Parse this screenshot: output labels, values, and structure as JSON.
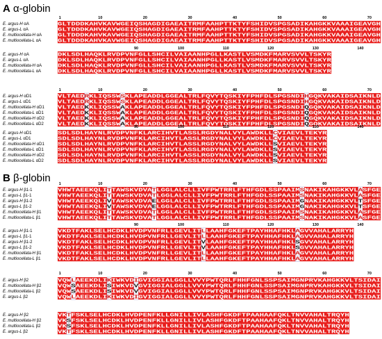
{
  "panels": [
    {
      "label": "A",
      "title": "α-globin",
      "blocks": [
        {
          "ruler": [
            1,
            10,
            20,
            30,
            40,
            50,
            60,
            70
          ],
          "rows": [
            {
              "name": "E. argus-H αA",
              "seq": "GLTDDDKAHVKAVWGEIQSHAGDIGAEAITRMFAAHPTTKTYFSHIDVSPGSADIKAHGKKVAAAIGEAVGH"
            },
            {
              "name": "E. argus-L αA",
              "seq": "GLTDDDKAHVKAVWGEIQSHAGDIGAEAITRMFAAHPTTKTYFSHIDVSPGSADIKAHGKKVAAAIGEAVGH"
            },
            {
              "name": "E. multiocellata-H αA",
              "seq": "GLTDDDKAHVKAVWGEIQSHAGDIGAEAITRMFAAHPTTKTYFSHIDVSPGSADIKAHGKKVAAAIGEAVGH"
            },
            {
              "name": "E. multiocellata-L αA",
              "seq": "GLTDDDKAHVKAVWGEIQSHAGDIGAEAITRMFAAHPTTKTYFSHIDVSPGSADIKAHGKKVAAAIGEAVGH"
            }
          ]
        },
        {
          "ruler": [
            90,
            100,
            110,
            120,
            130,
            140
          ],
          "rows": [
            {
              "name": "E. argus-H αA",
              "seq": "DKLSDLHAQKLRVDPVNFGLLSHCILVAIAANHPGLLKASTLVSMDKFMARVSVVLTSKYR"
            },
            {
              "name": "E. argus-L αA",
              "seq": "DKLSDLHAQKLRVDPVNFGLLSHCILVAIAANHPGLLKASTLVSMDKFMARVSVVLTSKYR"
            },
            {
              "name": "E. multiocellata-H αA",
              "seq": "DKLSDLHAQKLRVDPVNFGLLSHCILVAIAANHPGLLKASTLVSMDKFMARVSVVLTSKYR"
            },
            {
              "name": "E. multiocellata-L αA",
              "seq": "DKLSDLHAQKLRVDPVNFGLLSHCILVAIAANHPGLLKASTLVSMDKFMARVSVVLTSKYR"
            }
          ]
        },
        {
          "ruler": [
            1,
            10,
            20,
            30,
            40,
            50,
            60,
            70
          ],
          "rows": [
            {
              "name": "E. argus-H αD1",
              "seq": "VLTAEDRKLIQSSWSKLAPEADDLGGEALTRLFQVYTQSKIYFPHFDLSPGSNDIHGQKVAKAIDSAIKNLD"
            },
            {
              "name": "E. argus-L αD1",
              "seq": "VLTAEDRKLIQSSWSKLAPEADDLGGEALTRLFQVYTQSKIYFPHFDLSPGSNDIHGQKVAKAIDSAIKNLD"
            },
            {
              "name": "E. multiocellata-H αD1",
              "seq": "VLTAEDKKLIQSSWAKLAPEADDLGGEALTRLFQVYTQSKIYFPHFDLSPGSNDIQGQKVAKAIDSAIKNLD"
            },
            {
              "name": "E. multiocellata-L αD1",
              "seq": "VLTAEDKKLIQSSWAKLAPEADDLGGEALTRLFQVYTQSKIYFPHFDLSPGSNDIQGQKVAKAIDSAIKNLD"
            },
            {
              "name": "E. multiocellata-H αD2",
              "seq": "VLTAEDKKLIQSSWAKLAPEADDLGGEALTRLFQVYTQSKIYFPHFDLSPGSNDIQGQKVAKAIDSAIKNLD"
            },
            {
              "name": "E. multiocellata-L αD2",
              "seq": "VLTAEDKKLIQSSWAKLAPEADDLGGEALTRLFQVYTQSKIYFPHFDLSPGSNDIQGQKVAKAIDSAIKNLD"
            }
          ]
        },
        {
          "ruler": [
            90,
            100,
            110,
            120,
            130,
            140
          ],
          "rows": [
            {
              "name": "E. argus-H αD1",
              "seq": "SDLSDLHAYNLRVDPVNFKLARCIHVTLASSLRGDYNALVYLAWDKLLCVIAEVLTEKYR"
            },
            {
              "name": "E. argus-L αD1",
              "seq": "SDLSDLHAYNLRVDPVNFKLARCIHVTLASSLRGDYNALVYLAWDKLLCVIAEVLTEKYR"
            },
            {
              "name": "E. multiocellata-H αD1",
              "seq": "SDLSDLHAYNLRVDPVNFKLARCIHVTLASSLRGDYNALVYLAWDKLLSVIAEVLTEKYR"
            },
            {
              "name": "E. multiocellata-L αD1",
              "seq": "SDLSDLHAYNLRVDPVNFKLARCIHVTLASSLRGDYNALVYLAWDKLLSVIAEVLTEKYR"
            },
            {
              "name": "E. multiocellata-H αD2",
              "seq": "SDLSDLHAYNLRVDPVNFKLARCIHVTLASSLRGDYNALVYLAWDKLLSVIAEVLTEKYR"
            },
            {
              "name": "E. multiocellata-L αD2",
              "seq": "SDLSDLHAYNLRVDPVNFKLARCIHVTLASSLRGDYNALVYLAWDKLLSVIAEVLTEKYR"
            }
          ]
        }
      ]
    },
    {
      "label": "B",
      "title": "β-globin",
      "blocks": [
        {
          "ruler": [
            1,
            10,
            20,
            30,
            40,
            50,
            60,
            70
          ],
          "rows": [
            {
              "name": "E. argus-H β1-1",
              "seq": "VHWTAEEKQLITTAWSKVDVATLGGLALCLLIVFPWTRRLFTHFGDLSSPAAIMSNAKIKAHGKKVLASFGE"
            },
            {
              "name": "E. argus-L β1-1",
              "seq": "VHWTAEEKQLITTAWSKVDVATLGGLALCLLIVFPWTRRLFTHFGDLSSPAAIMSNAKIKAHGKKVLASFGE"
            },
            {
              "name": "E. argus-H β1-2",
              "seq": "VHWTAEEKQLIVTAWSKVDVAELGGLALCLLIVFPWTRRLFTHFGDLSSPAAIMGNAKIKAHGKKVLTSFGE"
            },
            {
              "name": "E. argus-L β1-2",
              "seq": "VHWTAEEKQLIVTAWSKVDVAELGGLALCLLIVFPWTRRLFTHFGDLSSPAAIMGNAKIKAHGKKVLTSFGE"
            },
            {
              "name": "E. multiocellata-H β1",
              "seq": "VHWTAEEKQLITTAWSKVDVATLGGLALCLLIVFPWTRRLFTHFGDLSSPAAIMSNAKIKAHGKKVLASFGE"
            },
            {
              "name": "E. multiocellata-L β1",
              "seq": "VHWTAEEKQLITTAWSKVDVATLGGLALCLLIVFPWTRRLFTHFGDLSSPAAIMSNAKIKAHGKKVLASFGE"
            }
          ]
        },
        {
          "ruler": [
            90,
            100,
            110,
            120,
            130,
            140
          ],
          "rows": [
            {
              "name": "E. argus-H β1-1",
              "seq": "VKDTFAKLSELHCDKLHVDPVNFRLLGEVLITLLAAHFGKEFTPAYHHAFHKLAGVVAHALARRYH"
            },
            {
              "name": "E. argus-L β1-1",
              "seq": "VKDTFAKLSELHCDKLHVDPVNFRLLGEVLITLLAAHFGKEFTPAYHHAFHKLAGVVAHALARRYH"
            },
            {
              "name": "E. argus-H β1-2",
              "seq": "VKDTFAKLSELHCDKLHVDPVNFRLLGEVLITVLAAHFGKEFTPAYHHAFHKLSGVVAHALARRYH"
            },
            {
              "name": "E. argus-L β1-2",
              "seq": "VKDTFAKLSELHCDKLHVDPVNFRLLGEVLITVLAAHFGKEFTPAYHHAFHKLSGVVAHALARRYH"
            },
            {
              "name": "E. multiocellata-H β1",
              "seq": "VKDTFAKLSELHCDKLHVDPVNFRLLGEVLITLLAAHFGKEFTPAYHHAFHKLAGVVAHALARRYH"
            },
            {
              "name": "E. multiocellata-L β1",
              "seq": "VKDTFAKLSELHCDKLHVDPVNFRLLGEVLITLLAAHFGKEFTPAYHHAFHKLAGVVAHALARRYH"
            }
          ]
        },
        {
          "ruler": [
            1,
            10,
            20,
            30,
            40,
            50,
            60,
            70
          ],
          "rows": [
            {
              "name": "E. argus-H β2",
              "seq": "VQWLAEEKDLIKIWKVDIGVIGGIALGGLLVVYPWTQRLFHHFGNLSSPSAIMGNPRVKAHGKKVLTSIDAI"
            },
            {
              "name": "E. multiocellata-H β2",
              "seq": "VQWSAEEKDLISIWKVDVGVIGGIALGGLLVVYPWTQRLFHHFGNLSSPSAIMGNPRVKAHGKKVLTSIDAI"
            },
            {
              "name": "E. multiocellata-L β2",
              "seq": "VQWSAEEKDLISIWKVDVGVIGGIALGGLLVVYPWTQRLFHHFGNLSSPSAIMGNPRVKAHGKKVLTSIDAI"
            },
            {
              "name": "E. argus-L β2",
              "seq": "VQWLAEEKDLIKIWKVDIGVIGGIALGGLLVVYPWTQRLFHHFGNLSSPSAIMGNPRVKAHGKKVLTSIDAI"
            }
          ]
        },
        {
          "rows": [
            {
              "name": "E. argus-H β2",
              "seq": "VKTFSKLSELHCDKLHVDPENFKLLGNILLIVLASHFGKDFTPAAHAAFQKLTNVVAHALTRQYH"
            },
            {
              "name": "E. multiocellata-H β2",
              "seq": "VKSFSKLSELHCDKLHVDPENFKLLGNILLIVLASHFGKDFTPAAHAAFQKLTNVVAHALTRQYH"
            },
            {
              "name": "E. multiocellata-L β2",
              "seq": "VKSFSKLSELHCDKLHVDPENFKLLGNILLIVLASHFGKDFTPAAHAAFQKLTNVVAHALTRQYH"
            },
            {
              "name": "E. argus-L β2",
              "seq": "VKTFSKLSELHCDKLHVDPENFKLLGNILLIVLASHFGKDFTPAAHAAFQKLTNVVAHALTRQYH"
            }
          ]
        }
      ]
    }
  ]
}
